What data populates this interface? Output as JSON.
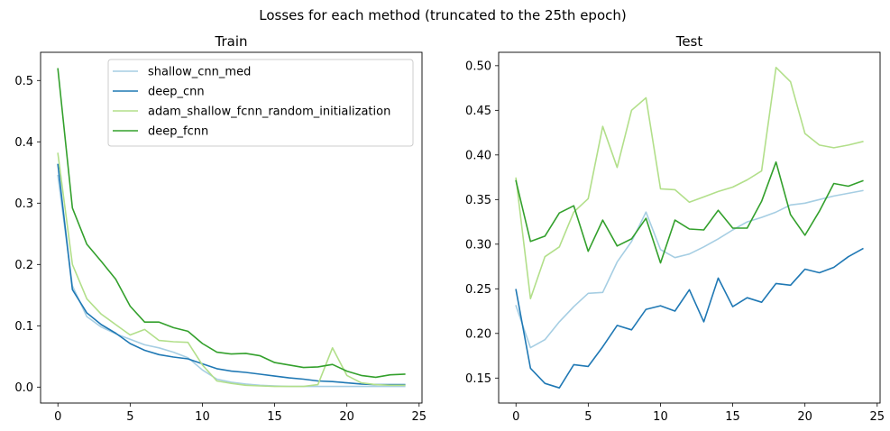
{
  "figure": {
    "suptitle": "Losses for each method (truncated to the 25th epoch)"
  },
  "chart_data": [
    {
      "type": "line",
      "title": "Train",
      "xlabel": "",
      "ylabel": "",
      "xlim": [
        -1.2,
        25.2
      ],
      "ylim": [
        -0.026,
        0.546
      ],
      "xticks": [
        0,
        5,
        10,
        15,
        20,
        25
      ],
      "yticks": [
        0.0,
        0.1,
        0.2,
        0.3,
        0.4,
        0.5
      ],
      "ytick_labels": [
        "0.0",
        "0.1",
        "0.2",
        "0.3",
        "0.4",
        "0.5"
      ],
      "grid": false,
      "legend_position": "top-right",
      "x": [
        0,
        1,
        2,
        3,
        4,
        5,
        6,
        7,
        8,
        9,
        10,
        11,
        12,
        13,
        14,
        15,
        16,
        17,
        18,
        19,
        20,
        21,
        22,
        23,
        24
      ],
      "series": [
        {
          "name": "shallow_cnn_med",
          "color": "#a6cee3",
          "values": [
            0.345,
            0.165,
            0.115,
            0.098,
            0.087,
            0.078,
            0.069,
            0.064,
            0.057,
            0.048,
            0.028,
            0.013,
            0.008,
            0.005,
            0.003,
            0.002,
            0.001,
            0.001,
            0.001,
            0.001,
            0.001,
            0.001,
            0.001,
            0.001,
            0.001
          ]
        },
        {
          "name": "deep_cnn",
          "color": "#1f78b4",
          "values": [
            0.363,
            0.159,
            0.121,
            0.102,
            0.088,
            0.071,
            0.06,
            0.053,
            0.049,
            0.046,
            0.038,
            0.03,
            0.026,
            0.024,
            0.021,
            0.018,
            0.015,
            0.013,
            0.01,
            0.009,
            0.007,
            0.005,
            0.004,
            0.004,
            0.004
          ]
        },
        {
          "name": "adam_shallow_fcnn_random_initialization",
          "color": "#b2df8a",
          "values": [
            0.381,
            0.2,
            0.144,
            0.119,
            0.102,
            0.085,
            0.094,
            0.076,
            0.074,
            0.073,
            0.036,
            0.01,
            0.006,
            0.003,
            0.002,
            0.001,
            0.001,
            0.001,
            0.004,
            0.064,
            0.019,
            0.007,
            0.004,
            0.003,
            0.003
          ]
        },
        {
          "name": "deep_fcnn",
          "color": "#33a02c",
          "values": [
            0.519,
            0.292,
            0.233,
            0.205,
            0.176,
            0.132,
            0.106,
            0.106,
            0.097,
            0.091,
            0.071,
            0.057,
            0.054,
            0.055,
            0.051,
            0.04,
            0.036,
            0.032,
            0.033,
            0.037,
            0.026,
            0.019,
            0.016,
            0.02,
            0.021
          ]
        }
      ]
    },
    {
      "type": "line",
      "title": "Test",
      "xlabel": "",
      "ylabel": "",
      "xlim": [
        -1.2,
        25.2
      ],
      "ylim": [
        0.122,
        0.515
      ],
      "xticks": [
        0,
        5,
        10,
        15,
        20,
        25
      ],
      "yticks": [
        0.15,
        0.2,
        0.25,
        0.3,
        0.35,
        0.4,
        0.45,
        0.5
      ],
      "ytick_labels": [
        "0.15",
        "0.20",
        "0.25",
        "0.30",
        "0.35",
        "0.40",
        "0.45",
        "0.50"
      ],
      "grid": false,
      "x": [
        0,
        1,
        2,
        3,
        4,
        5,
        6,
        7,
        8,
        9,
        10,
        11,
        12,
        13,
        14,
        15,
        16,
        17,
        18,
        19,
        20,
        21,
        22,
        23,
        24
      ],
      "series": [
        {
          "name": "shallow_cnn_med",
          "color": "#a6cee3",
          "values": [
            0.231,
            0.184,
            0.193,
            0.213,
            0.23,
            0.245,
            0.246,
            0.28,
            0.303,
            0.336,
            0.294,
            0.285,
            0.289,
            0.297,
            0.306,
            0.316,
            0.325,
            0.33,
            0.336,
            0.344,
            0.346,
            0.35,
            0.354,
            0.357,
            0.36
          ]
        },
        {
          "name": "deep_cnn",
          "color": "#1f78b4",
          "values": [
            0.249,
            0.161,
            0.144,
            0.139,
            0.165,
            0.163,
            0.185,
            0.209,
            0.204,
            0.227,
            0.231,
            0.225,
            0.249,
            0.213,
            0.262,
            0.23,
            0.24,
            0.235,
            0.256,
            0.254,
            0.272,
            0.268,
            0.274,
            0.286,
            0.295
          ]
        },
        {
          "name": "adam_shallow_fcnn_random_initialization",
          "color": "#b2df8a",
          "values": [
            0.374,
            0.239,
            0.286,
            0.297,
            0.336,
            0.351,
            0.432,
            0.386,
            0.45,
            0.464,
            0.362,
            0.361,
            0.347,
            0.353,
            0.359,
            0.364,
            0.372,
            0.382,
            0.498,
            0.482,
            0.424,
            0.411,
            0.408,
            0.411,
            0.415
          ]
        },
        {
          "name": "deep_fcnn",
          "color": "#33a02c",
          "values": [
            0.371,
            0.303,
            0.309,
            0.335,
            0.343,
            0.292,
            0.327,
            0.298,
            0.306,
            0.329,
            0.279,
            0.327,
            0.317,
            0.316,
            0.338,
            0.318,
            0.318,
            0.348,
            0.392,
            0.333,
            0.31,
            0.337,
            0.368,
            0.365,
            0.371
          ]
        }
      ]
    }
  ]
}
